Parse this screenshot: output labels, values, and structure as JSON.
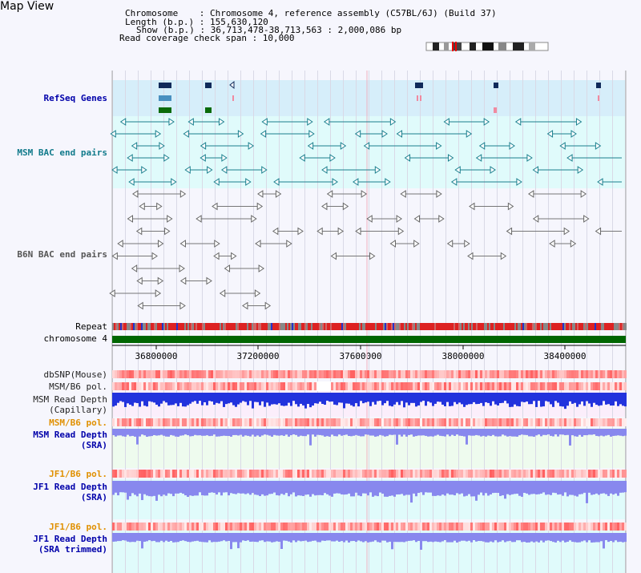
{
  "title": "Map View",
  "header": {
    "line1": "Chromosome    : Chromosome 4, reference assembly (C57BL/6J) (Build 37)",
    "line2": "Length (b.p.) : 155,630,120",
    "line3": "Show (b.p.) : 36,713,478-38,713,563 : 2,000,086 bp",
    "line4": "Read coverage check span : 10,000"
  },
  "tracks": {
    "refseq": "RefSeq Genes",
    "msm_bac": "MSM BAC end pairs",
    "b6n_bac": "B6N BAC end pairs",
    "repeat": "Repeat",
    "chromosome": "chromosome 4",
    "dbsnp": "dbSNP(Mouse)",
    "msm_b6_pol_1": "MSM/B6 pol.",
    "msm_read_depth_cap_1": "MSM Read Depth",
    "msm_read_depth_cap_2": "(Capillary)",
    "msm_b6_pol_2": "MSM/B6 pol.",
    "msm_read_depth_sra_1": "MSM Read Depth",
    "msm_read_depth_sra_2": "(SRA)",
    "jf1_b6_pol_1": "JF1/B6 pol.",
    "jf1_read_depth_sra_1": "JF1 Read Depth",
    "jf1_read_depth_sra_2": "(SRA)",
    "jf1_b6_pol_2": "JF1/B6 pol.",
    "jf1_read_depth_trim_1": "JF1 Read Depth",
    "jf1_read_depth_trim_2": "(SRA trimmed)"
  },
  "axis": {
    "ticks": [
      "36800000",
      "37200000",
      "37600000",
      "38000000",
      "38400000"
    ]
  },
  "colors": {
    "refseq_bg": "#d8f0fb",
    "msm_bg": "#e2fbfb",
    "b6n_bg": "#f3f3f9",
    "chromosome": "#006600",
    "depth_blue": "#2233dd",
    "depth_light": "#8888ee"
  }
}
